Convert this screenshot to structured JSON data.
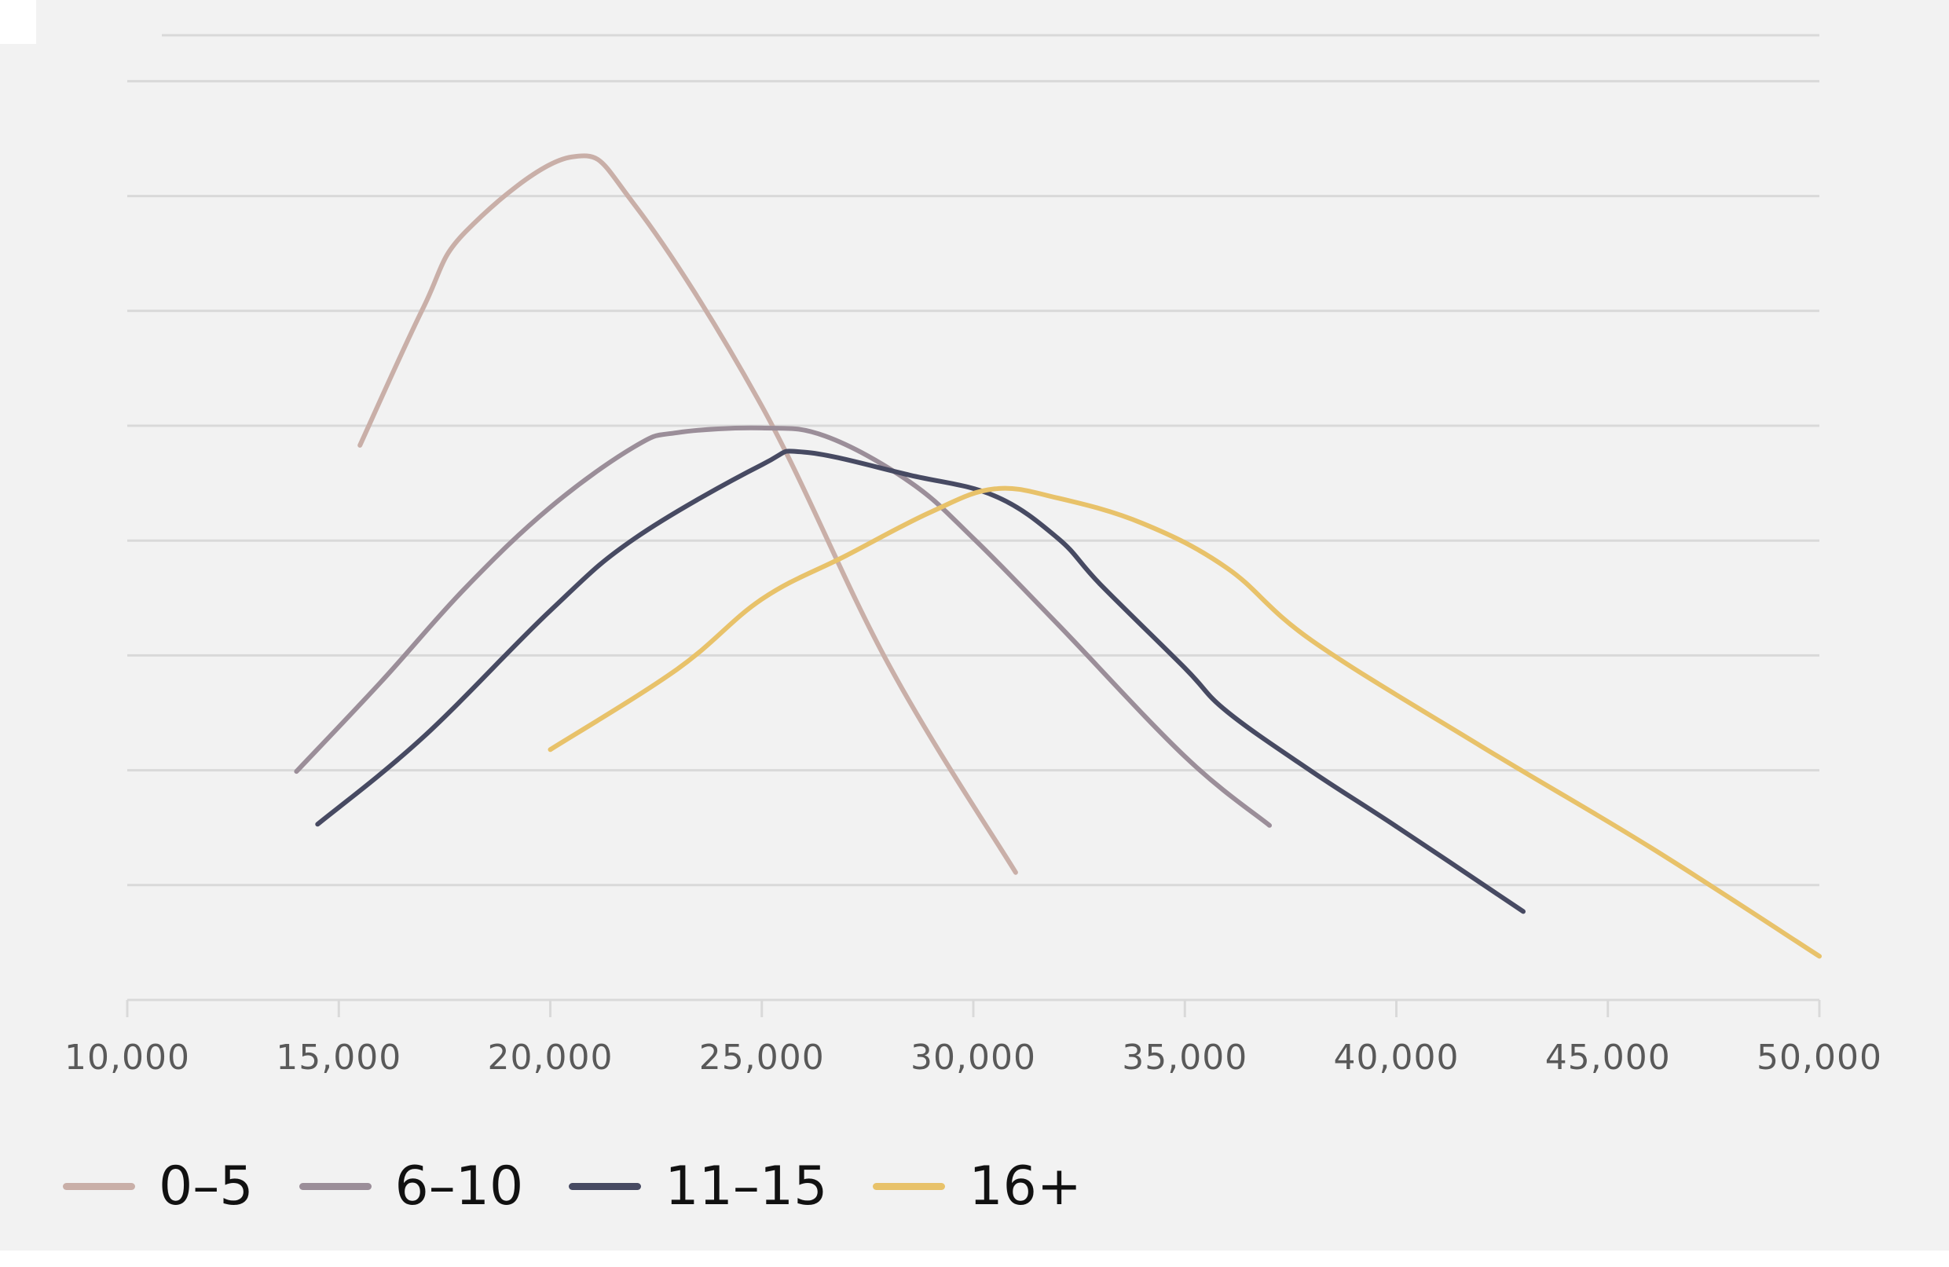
{
  "chart_data": {
    "type": "line",
    "title": "",
    "xlabel": "",
    "ylabel": "",
    "xlim": [
      10000,
      50000
    ],
    "x_ticks": [
      10000,
      15000,
      20000,
      25000,
      30000,
      35000,
      40000,
      45000,
      50000
    ],
    "x_tick_labels": [
      "10,000",
      "15,000",
      "20,000",
      "25,000",
      "30,000",
      "35,000",
      "40,000",
      "45,000",
      "50,000"
    ],
    "y_tick_labels": [],
    "ylim": [
      0,
      8.7
    ],
    "y_gridlines": [
      1,
      2,
      3,
      4,
      5,
      6,
      7,
      8,
      8.4
    ],
    "grid": true,
    "legend_position": "bottom-left",
    "series": [
      {
        "name": "0–5",
        "color": "#c9afa8",
        "points": [
          [
            15500,
            4.83
          ],
          [
            17000,
            6.03
          ],
          [
            18000,
            6.69
          ],
          [
            20500,
            7.34
          ],
          [
            22000,
            6.92
          ],
          [
            25000,
            5.17
          ],
          [
            28000,
            2.92
          ],
          [
            31000,
            1.11
          ]
        ]
      },
      {
        "name": "6–10",
        "color": "#9b8e99",
        "points": [
          [
            14000,
            1.99
          ],
          [
            16000,
            2.77
          ],
          [
            18000,
            3.59
          ],
          [
            20000,
            4.29
          ],
          [
            22000,
            4.82
          ],
          [
            23000,
            4.94
          ],
          [
            25000,
            4.98
          ],
          [
            26500,
            4.91
          ],
          [
            28500,
            4.51
          ],
          [
            30000,
            4.02
          ],
          [
            32000,
            3.27
          ],
          [
            35000,
            2.12
          ],
          [
            37000,
            1.52
          ]
        ]
      },
      {
        "name": "11–15",
        "color": "#474a62",
        "points": [
          [
            14500,
            1.53
          ],
          [
            17000,
            2.29
          ],
          [
            20000,
            3.39
          ],
          [
            22000,
            4.02
          ],
          [
            25000,
            4.66
          ],
          [
            26000,
            4.77
          ],
          [
            28500,
            4.57
          ],
          [
            30500,
            4.39
          ],
          [
            32000,
            4.02
          ],
          [
            33000,
            3.62
          ],
          [
            35000,
            2.89
          ],
          [
            36000,
            2.51
          ],
          [
            38000,
            1.99
          ],
          [
            40000,
            1.51
          ],
          [
            43000,
            0.77
          ]
        ]
      },
      {
        "name": "16+",
        "color": "#e8c26a",
        "points": [
          [
            20000,
            2.18
          ],
          [
            23000,
            2.88
          ],
          [
            25000,
            3.49
          ],
          [
            27000,
            3.87
          ],
          [
            29000,
            4.25
          ],
          [
            30500,
            4.45
          ],
          [
            32000,
            4.37
          ],
          [
            34000,
            4.15
          ],
          [
            36000,
            3.76
          ],
          [
            38000,
            3.13
          ],
          [
            42000,
            2.21
          ],
          [
            46000,
            1.33
          ],
          [
            50000,
            0.38
          ]
        ]
      }
    ]
  }
}
